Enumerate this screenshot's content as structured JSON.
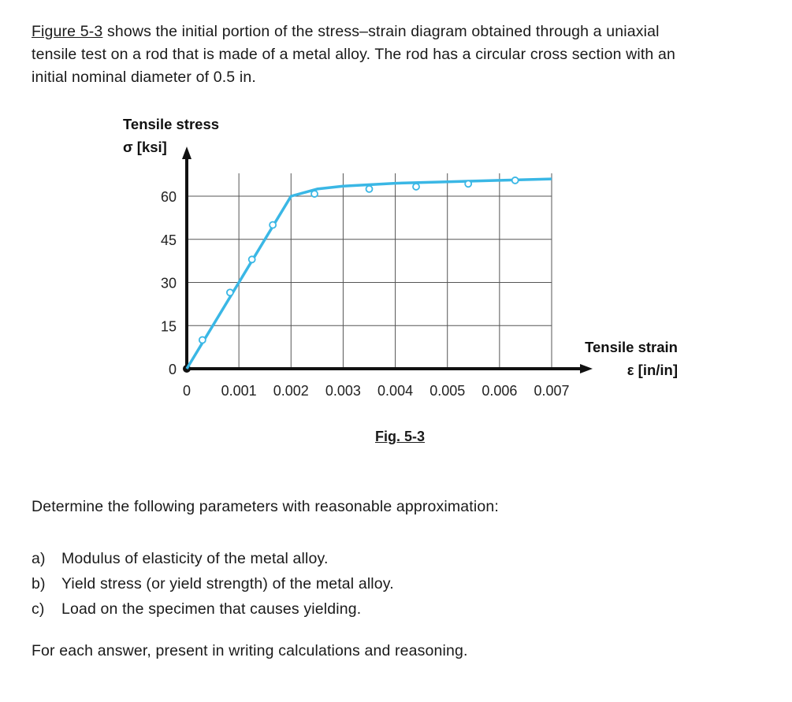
{
  "intro": {
    "figure_ref": "Figure 5-3",
    "line1": " shows the initial portion of the stress–strain diagram obtained through a uniaxial",
    "line2": "tensile test on a rod that is made of a metal alloy. The rod has a circular cross section with an",
    "line3": "initial nominal diameter of 0.5 in."
  },
  "chart_data": {
    "type": "line",
    "ylabel_line1": "Tensile stress",
    "ylabel_line2": "σ [ksi]",
    "xlabel_line1": "Tensile strain",
    "xlabel_line2": "ε [in/in]",
    "x_ticks": [
      0,
      0.001,
      0.002,
      0.003,
      0.004,
      0.005,
      0.006,
      0.007
    ],
    "x_tick_labels": [
      "0",
      "0.001",
      "0.002",
      "0.003",
      "0.004",
      "0.005",
      "0.006",
      "0.007"
    ],
    "y_ticks": [
      0,
      15,
      30,
      45,
      60
    ],
    "y_tick_labels": [
      "0",
      "15",
      "30",
      "45",
      "60"
    ],
    "xlim": [
      0,
      0.007
    ],
    "ylim": [
      0,
      68
    ],
    "grid": true,
    "curve_color": "#3ab7e5",
    "curve": [
      [
        0,
        0
      ],
      [
        0.002,
        60
      ],
      [
        0.0025,
        62.5
      ],
      [
        0.003,
        63.5
      ],
      [
        0.004,
        64.5
      ],
      [
        0.005,
        65
      ],
      [
        0.006,
        65.5
      ],
      [
        0.007,
        66
      ]
    ],
    "points": [
      [
        0.0003,
        10
      ],
      [
        0.00083,
        26.5
      ],
      [
        0.00125,
        38
      ],
      [
        0.00165,
        50
      ],
      [
        0.00245,
        60.8
      ],
      [
        0.0035,
        62.5
      ],
      [
        0.0044,
        63.3
      ],
      [
        0.0054,
        64.3
      ],
      [
        0.0063,
        65.5
      ]
    ]
  },
  "caption": "Fig. 5-3",
  "question": "Determine the following parameters with reasonable approximation:",
  "items": [
    {
      "mark": "a)",
      "text": "Modulus of elasticity of the metal alloy."
    },
    {
      "mark": "b)",
      "text": "Yield stress (or yield strength) of the metal alloy."
    },
    {
      "mark": "c)",
      "text": "Load on the specimen that causes yielding."
    }
  ],
  "closing": "For each answer, present in writing calculations and reasoning."
}
